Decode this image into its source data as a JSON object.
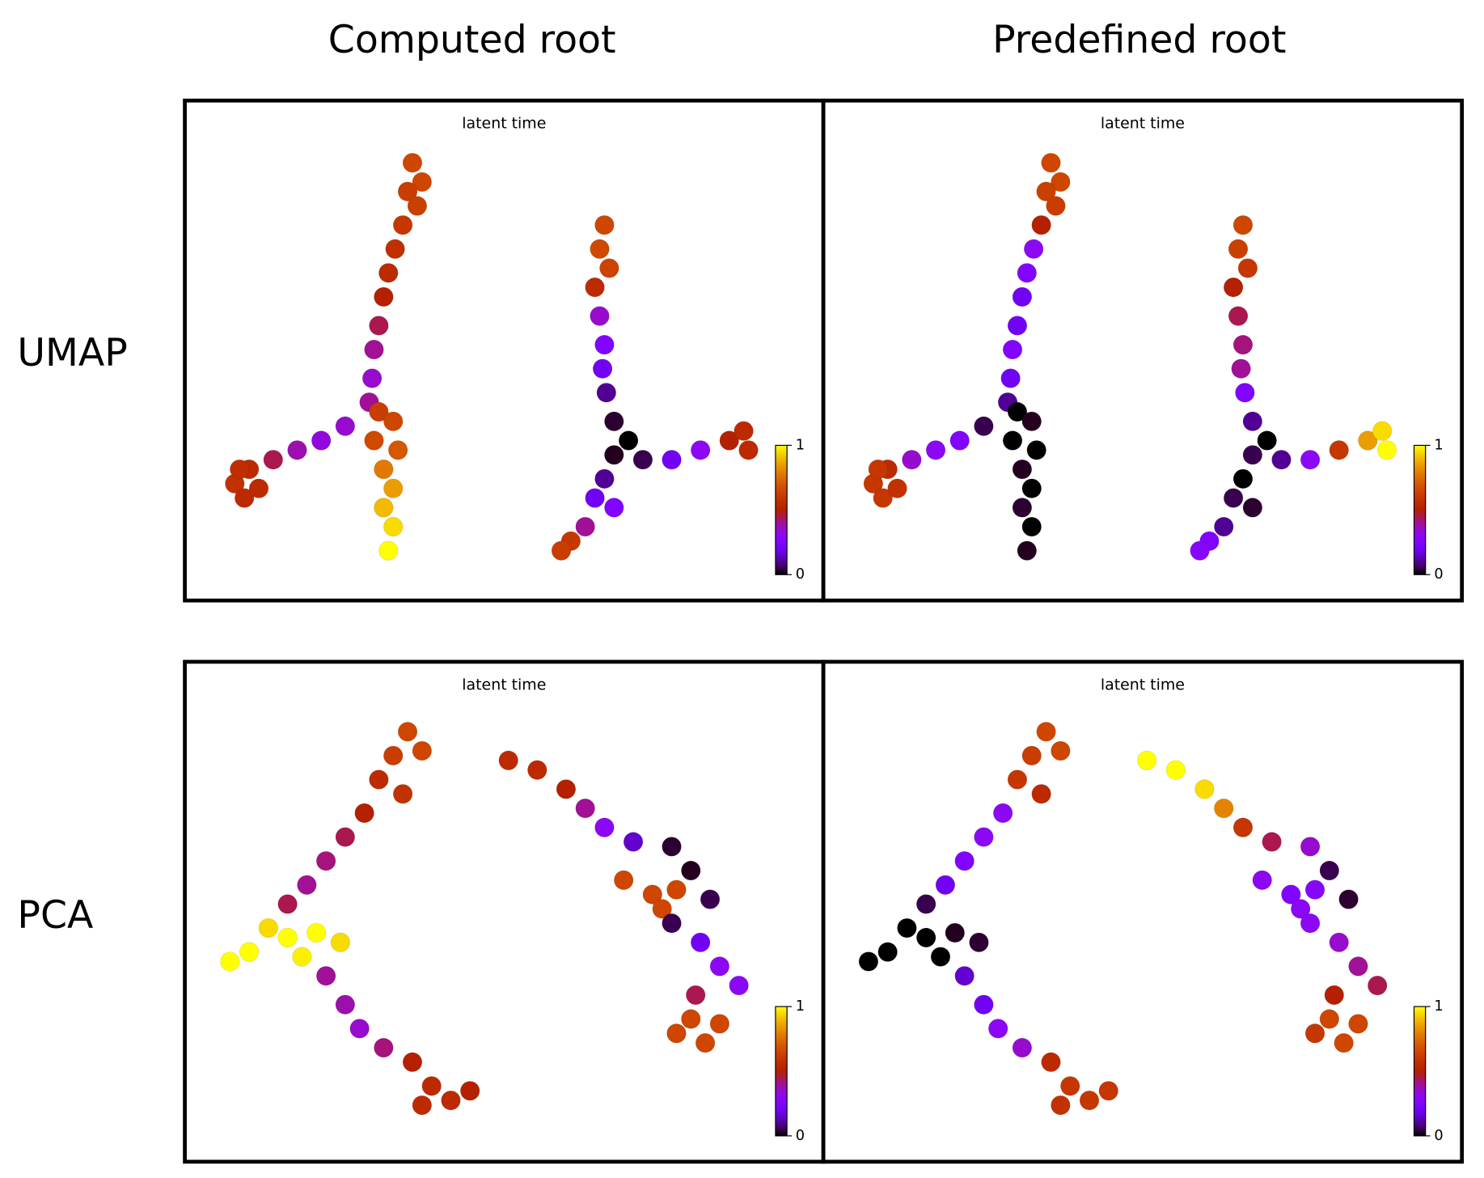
{
  "column_titles": [
    "Computed root",
    "Predefined root"
  ],
  "row_titles": [
    "UMAP",
    "PCA"
  ],
  "chart_data": [
    {
      "type": "scatter",
      "title": "latent time",
      "colormap": "gnuplot",
      "xlim": [
        0,
        665
      ],
      "ylim": [
        0,
        522
      ],
      "colorbar_ticks": [
        0,
        1
      ],
      "x": [
        237,
        247,
        232,
        242,
        227,
        219,
        212,
        207,
        202,
        197,
        195,
        192,
        167,
        142,
        117,
        92,
        67,
        52,
        62,
        77,
        57,
        202,
        217,
        197,
        222,
        207,
        217,
        207,
        217,
        212,
        437,
        432,
        442,
        427,
        432,
        437,
        435,
        439,
        447,
        462,
        447,
        477,
        507,
        537,
        567,
        582,
        587,
        437,
        427,
        447,
        417,
        402,
        392
      ],
      "y": [
        457,
        437,
        427,
        412,
        392,
        367,
        342,
        317,
        287,
        262,
        232,
        207,
        182,
        167,
        157,
        147,
        137,
        122,
        107,
        117,
        137,
        197,
        187,
        167,
        157,
        137,
        117,
        97,
        77,
        52,
        392,
        367,
        347,
        327,
        297,
        267,
        242,
        217,
        187,
        167,
        152,
        147,
        147,
        157,
        167,
        177,
        157,
        127,
        107,
        97,
        77,
        62,
        52
      ],
      "values": [
        0.65,
        0.65,
        0.62,
        0.63,
        0.6,
        0.57,
        0.55,
        0.5,
        0.45,
        0.4,
        0.35,
        0.4,
        0.35,
        0.33,
        0.38,
        0.45,
        0.55,
        0.58,
        0.55,
        0.55,
        0.56,
        0.62,
        0.65,
        0.66,
        0.7,
        0.78,
        0.85,
        0.9,
        0.95,
        1,
        0.65,
        0.66,
        0.64,
        0.55,
        0.35,
        0.25,
        0.2,
        0.1,
        0.03,
        0,
        0.02,
        0.05,
        0.2,
        0.3,
        0.5,
        0.55,
        0.55,
        0.1,
        0.2,
        0.25,
        0.4,
        0.6,
        0.62
      ]
    },
    {
      "type": "scatter",
      "title": "latent time",
      "colormap": "gnuplot",
      "xlim": [
        0,
        665
      ],
      "ylim": [
        0,
        522
      ],
      "colorbar_ticks": [
        0,
        1
      ],
      "x": [
        237,
        247,
        232,
        242,
        227,
        219,
        212,
        207,
        202,
        197,
        195,
        192,
        167,
        142,
        117,
        92,
        67,
        52,
        62,
        77,
        57,
        202,
        217,
        197,
        222,
        207,
        217,
        207,
        217,
        212,
        437,
        432,
        442,
        427,
        432,
        437,
        435,
        439,
        447,
        462,
        447,
        477,
        507,
        537,
        567,
        582,
        587,
        437,
        427,
        447,
        417,
        402,
        392
      ],
      "y": [
        457,
        437,
        427,
        412,
        392,
        367,
        342,
        317,
        287,
        262,
        232,
        207,
        182,
        167,
        157,
        147,
        137,
        122,
        107,
        117,
        137,
        197,
        187,
        167,
        157,
        137,
        117,
        97,
        77,
        52,
        392,
        367,
        347,
        327,
        297,
        267,
        242,
        217,
        187,
        167,
        152,
        147,
        147,
        157,
        167,
        177,
        157,
        127,
        107,
        97,
        77,
        62,
        52
      ],
      "values": [
        0.65,
        0.65,
        0.63,
        0.62,
        0.5,
        0.3,
        0.25,
        0.2,
        0.2,
        0.25,
        0.2,
        0.1,
        0.05,
        0.25,
        0.3,
        0.35,
        0.55,
        0.6,
        0.6,
        0.58,
        0.6,
        0,
        0.02,
        0,
        0,
        0.02,
        0,
        0.03,
        0,
        0.02,
        0.65,
        0.63,
        0.6,
        0.5,
        0.45,
        0.42,
        0.4,
        0.25,
        0.1,
        0,
        0.05,
        0.1,
        0.3,
        0.6,
        0.85,
        0.95,
        1,
        0,
        0.05,
        0.03,
        0.1,
        0.25,
        0.28
      ]
    },
    {
      "type": "scatter",
      "title": "latent time",
      "colormap": "gnuplot",
      "xlim": [
        0,
        665
      ],
      "ylim": [
        0,
        522
      ],
      "colorbar_ticks": [
        0,
        1
      ],
      "x": [
        232,
        247,
        217,
        202,
        227,
        187,
        167,
        147,
        127,
        107,
        87,
        107,
        137,
        67,
        122,
        162,
        47,
        147,
        167,
        182,
        207,
        237,
        257,
        277,
        247,
        297,
        337,
        367,
        397,
        417,
        437,
        467,
        507,
        527,
        457,
        487,
        512,
        497,
        547,
        507,
        537,
        557,
        577,
        532,
        527,
        557,
        542,
        512
      ],
      "y": [
        449,
        429,
        424,
        399,
        384,
        364,
        339,
        314,
        289,
        269,
        244,
        234,
        239,
        219,
        214,
        229,
        209,
        194,
        164,
        139,
        119,
        104,
        79,
        64,
        59,
        74,
        419,
        409,
        389,
        369,
        349,
        334,
        329,
        304,
        294,
        279,
        284,
        264,
        274,
        249,
        229,
        204,
        184,
        174,
        149,
        144,
        124,
        134
      ],
      "values": [
        0.65,
        0.65,
        0.62,
        0.55,
        0.58,
        0.5,
        0.45,
        0.42,
        0.4,
        0.45,
        0.95,
        1,
        1,
        1,
        0.98,
        0.95,
        1,
        0.4,
        0.38,
        0.35,
        0.42,
        0.5,
        0.55,
        0.55,
        0.55,
        0.5,
        0.55,
        0.55,
        0.5,
        0.4,
        0.3,
        0.15,
        0.03,
        0.02,
        0.65,
        0.65,
        0.65,
        0.65,
        0.05,
        0.05,
        0.2,
        0.3,
        0.3,
        0.45,
        0.65,
        0.65,
        0.65,
        0.65
      ]
    },
    {
      "type": "scatter",
      "title": "latent time",
      "colormap": "gnuplot",
      "xlim": [
        0,
        665
      ],
      "ylim": [
        0,
        522
      ],
      "colorbar_ticks": [
        0,
        1
      ],
      "x": [
        232,
        247,
        217,
        202,
        227,
        187,
        167,
        147,
        127,
        107,
        87,
        107,
        137,
        67,
        122,
        162,
        47,
        147,
        167,
        182,
        207,
        237,
        257,
        277,
        247,
        297,
        337,
        367,
        397,
        417,
        437,
        467,
        507,
        527,
        457,
        487,
        512,
        497,
        547,
        507,
        537,
        557,
        577,
        532,
        527,
        557,
        542,
        512
      ],
      "y": [
        449,
        429,
        424,
        399,
        384,
        364,
        339,
        314,
        289,
        269,
        244,
        234,
        239,
        219,
        214,
        229,
        209,
        194,
        164,
        139,
        119,
        104,
        79,
        64,
        59,
        74,
        419,
        409,
        389,
        369,
        349,
        334,
        329,
        304,
        294,
        279,
        284,
        264,
        274,
        249,
        229,
        204,
        184,
        174,
        149,
        144,
        124,
        134
      ],
      "values": [
        0.65,
        0.65,
        0.62,
        0.6,
        0.55,
        0.3,
        0.3,
        0.25,
        0.2,
        0.05,
        0,
        0,
        0.02,
        0,
        0,
        0.03,
        0,
        0.15,
        0.2,
        0.3,
        0.35,
        0.55,
        0.6,
        0.6,
        0.58,
        0.6,
        1,
        1,
        0.95,
        0.8,
        0.6,
        0.45,
        0.35,
        0.05,
        0.3,
        0.25,
        0.28,
        0.3,
        0.03,
        0.3,
        0.35,
        0.4,
        0.45,
        0.5,
        0.65,
        0.65,
        0.65,
        0.6
      ]
    }
  ]
}
